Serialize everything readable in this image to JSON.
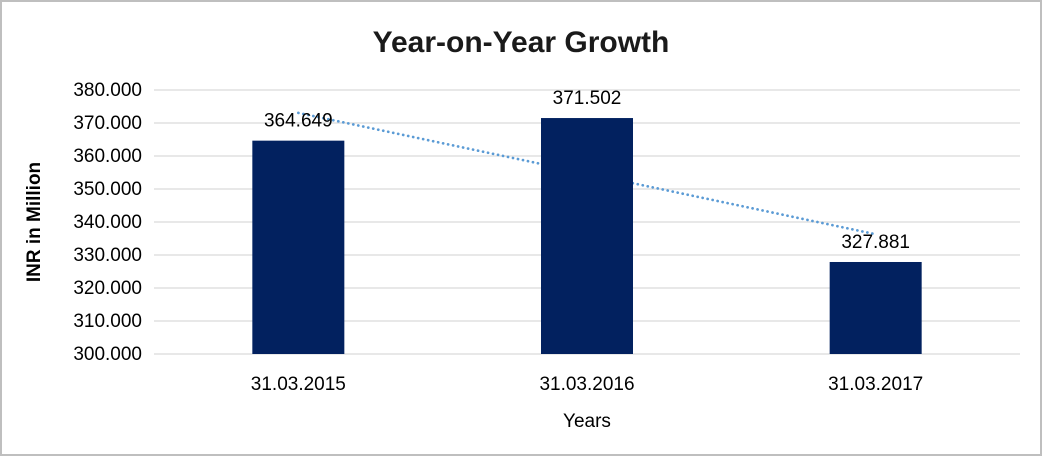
{
  "window": {
    "background": "#ffffff",
    "border_color": "#bfbfbf"
  },
  "chart_data": {
    "type": "bar",
    "title": "Year-on-Year Growth",
    "xlabel": "Years",
    "ylabel": "INR in Million",
    "categories": [
      "31.03.2015",
      "31.03.2016",
      "31.03.2017"
    ],
    "values": [
      364.649,
      371.502,
      327.881
    ],
    "data_labels": [
      "364.649",
      "371.502",
      "327.881"
    ],
    "ylim": [
      300,
      380
    ],
    "ytick_step": 10,
    "yticks": [
      {
        "value": 300,
        "label": "300.000"
      },
      {
        "value": 310,
        "label": "310.000"
      },
      {
        "value": 320,
        "label": "320.000"
      },
      {
        "value": 330,
        "label": "330.000"
      },
      {
        "value": 340,
        "label": "340.000"
      },
      {
        "value": 350,
        "label": "350.000"
      },
      {
        "value": 360,
        "label": "360.000"
      },
      {
        "value": 370,
        "label": "370.000"
      },
      {
        "value": 380,
        "label": "380.000"
      }
    ],
    "grid": true,
    "legend_position": "none",
    "colors": {
      "bar": "#02215f",
      "gridline": "#d9d9d9",
      "text": "#000000",
      "title": "#1a1a1a",
      "trendline": "#5b9bd5"
    },
    "trendline": {
      "type": "linear",
      "style": "dotted",
      "color": "#5b9bd5",
      "start_value": 373.06,
      "end_value": 336.29
    }
  }
}
